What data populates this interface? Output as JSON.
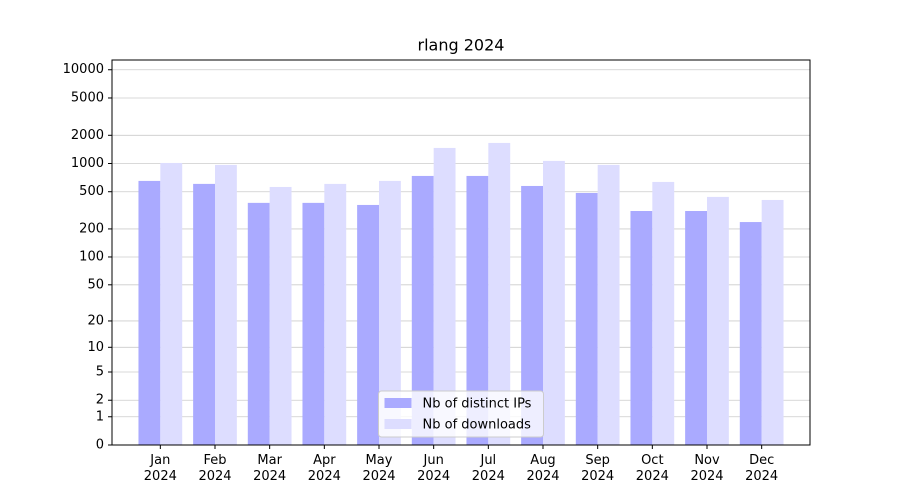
{
  "chart_data": {
    "type": "bar",
    "title": "rlang 2024",
    "yscale": "log1p",
    "categories": [
      "Jan\n2024",
      "Feb\n2024",
      "Mar\n2024",
      "Apr\n2024",
      "May\n2024",
      "Jun\n2024",
      "Jul\n2024",
      "Aug\n2024",
      "Sep\n2024",
      "Oct\n2024",
      "Nov\n2024",
      "Dec\n2024"
    ],
    "series": [
      {
        "name": "Nb of distinct IPs",
        "color": "#aaaaff",
        "values": [
          652,
          606,
          380,
          380,
          361,
          737,
          737,
          576,
          485,
          311,
          311,
          237
        ]
      },
      {
        "name": "Nb of downloads",
        "color": "#ddddff",
        "values": [
          1014,
          966,
          562,
          606,
          652,
          1466,
          1658,
          1066,
          966,
          636,
          440,
          408
        ]
      }
    ],
    "ylim": [
      0,
      12700
    ],
    "yticks": [
      0,
      1,
      2,
      5,
      10,
      20,
      50,
      100,
      200,
      500,
      1000,
      2000,
      5000,
      10000
    ],
    "grid": true,
    "legend": "lower center"
  }
}
